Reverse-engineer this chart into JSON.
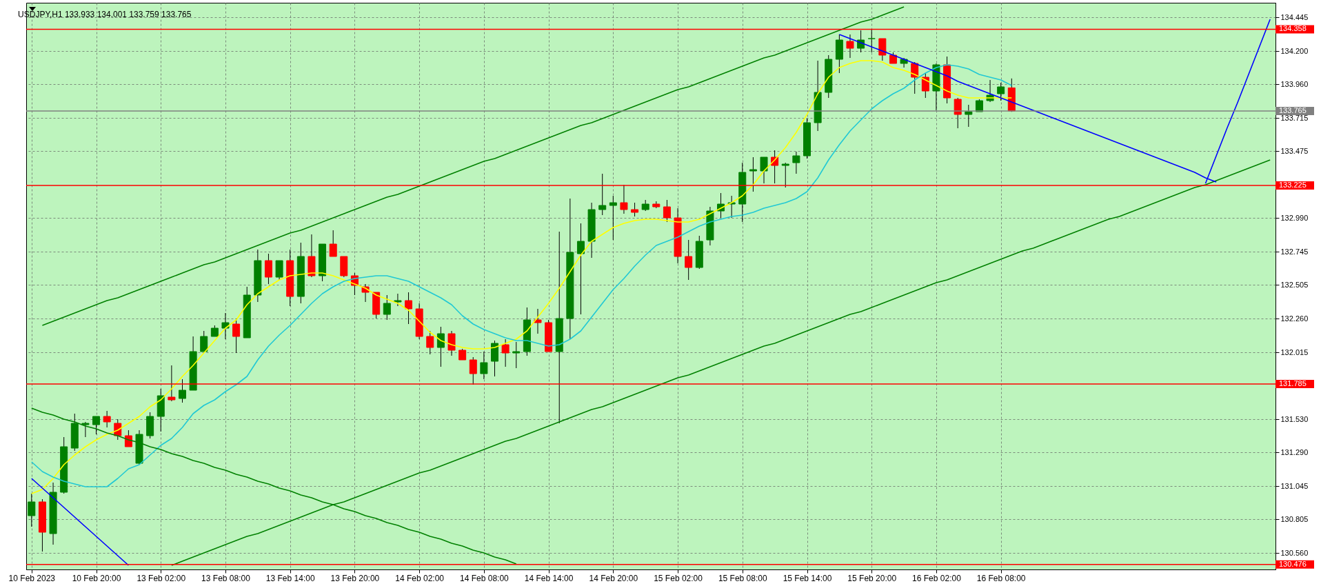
{
  "chart_data": {
    "type": "candlestick",
    "title": "USDJPY,H1  133.933 134.001 133.759 133.765",
    "categories": [
      "10 Feb 2023",
      null,
      null,
      null,
      null,
      null,
      "10 Feb 20:00",
      null,
      null,
      null,
      null,
      null,
      "13 Feb 02:00",
      null,
      null,
      null,
      null,
      null,
      "13 Feb 08:00",
      null,
      null,
      null,
      null,
      null,
      "13 Feb 14:00",
      null,
      null,
      null,
      null,
      null,
      "13 Feb 20:00",
      null,
      null,
      null,
      null,
      null,
      "14 Feb 02:00",
      null,
      null,
      null,
      null,
      null,
      "14 Feb 08:00",
      null,
      null,
      null,
      null,
      null,
      "14 Feb 14:00",
      null,
      null,
      null,
      null,
      null,
      "14 Feb 20:00",
      null,
      null,
      null,
      null,
      null,
      "15 Feb 02:00",
      null,
      null,
      null,
      null,
      null,
      "15 Feb 08:00",
      null,
      null,
      null,
      null,
      null,
      "15 Feb 14:00",
      null,
      null,
      null,
      null,
      null,
      "15 Feb 20:00",
      null,
      null,
      null,
      null,
      null,
      "16 Feb 02:00",
      null,
      null,
      null,
      null,
      null,
      "16 Feb 08:00",
      null,
      null,
      null,
      null,
      null,
      null,
      null,
      null,
      null,
      null,
      null,
      null,
      null,
      null,
      null,
      null,
      null,
      null,
      null,
      null,
      null,
      null,
      null,
      null,
      null
    ],
    "colors": [
      "#008000",
      "#ff0000",
      "#008000",
      "#008000",
      "#008000",
      "#008000",
      "#008000",
      "#ff0000",
      "#ff0000",
      "#ff0000",
      "#008000",
      "#008000",
      "#008000",
      "#ff0000",
      "#008000",
      "#008000",
      "#008000",
      "#008000",
      "#008000",
      "#ff0000",
      "#008000",
      "#008000",
      "#ff0000",
      "#008000",
      "#ff0000",
      "#008000",
      "#ff0000",
      "#008000",
      "#ff0000",
      "#ff0000",
      "#ff0000",
      "#ff0000",
      "#ff0000",
      "#008000",
      "#008000",
      "#ff0000",
      "#ff0000",
      "#ff0000",
      "#008000",
      "#ff0000",
      "#ff0000",
      "#ff0000",
      "#008000",
      "#008000",
      "#ff0000",
      "#008000",
      "#008000",
      "#ff0000",
      "#ff0000",
      "#008000",
      "#008000",
      "#008000",
      "#008000",
      "#008000",
      "#008000",
      "#ff0000",
      "#ff0000",
      "#008000",
      "#ff0000",
      "#ff0000",
      "#ff0000",
      "#ff0000",
      "#008000",
      "#008000",
      "#008000",
      "#008000",
      "#008000",
      "#008000",
      "#008000",
      "#ff0000",
      "#008000",
      "#008000",
      "#008000",
      "#008000",
      "#008000",
      "#008000",
      "#ff0000",
      "#008000",
      "#008000",
      "#ff0000",
      "#ff0000",
      "#008000",
      "#ff0000",
      "#ff0000",
      "#008000",
      "#ff0000",
      "#ff0000",
      "#008000",
      "#008000",
      "#008000",
      "#008000",
      "#ff0000",
      null,
      null,
      null,
      null,
      null,
      null,
      null,
      null,
      null,
      null,
      null,
      null,
      null,
      null,
      null,
      null,
      null,
      null,
      null,
      null,
      null,
      null,
      null,
      null
    ],
    "ohlc": [
      [
        130.83,
        130.99,
        130.75,
        130.93
      ],
      [
        130.93,
        130.95,
        130.57,
        130.71
      ],
      [
        130.7,
        131.07,
        130.62,
        131.0
      ],
      [
        131.0,
        131.4,
        130.99,
        131.33
      ],
      [
        131.32,
        131.57,
        131.3,
        131.5
      ],
      [
        131.49,
        131.51,
        131.4,
        131.5
      ],
      [
        131.49,
        131.55,
        131.42,
        131.55
      ],
      [
        131.55,
        131.59,
        131.47,
        131.51
      ],
      [
        131.5,
        131.53,
        131.38,
        131.41
      ],
      [
        131.41,
        131.45,
        131.33,
        131.33
      ],
      [
        131.21,
        131.45,
        131.2,
        131.42
      ],
      [
        131.41,
        131.58,
        131.39,
        131.55
      ],
      [
        131.55,
        131.75,
        131.44,
        131.7
      ],
      [
        131.69,
        131.92,
        131.66,
        131.67
      ],
      [
        131.68,
        131.82,
        131.65,
        131.74
      ],
      [
        131.74,
        132.13,
        131.74,
        132.02
      ],
      [
        132.02,
        132.17,
        132.02,
        132.13
      ],
      [
        132.13,
        132.21,
        132.13,
        132.19
      ],
      [
        132.19,
        132.3,
        132.11,
        132.23
      ],
      [
        132.22,
        132.26,
        132.01,
        132.13
      ],
      [
        132.12,
        132.49,
        132.12,
        132.43
      ],
      [
        132.43,
        132.76,
        132.38,
        132.68
      ],
      [
        132.68,
        132.73,
        132.51,
        132.56
      ],
      [
        132.56,
        132.68,
        132.54,
        132.68
      ],
      [
        132.68,
        132.76,
        132.35,
        132.42
      ],
      [
        132.42,
        132.81,
        132.37,
        132.71
      ],
      [
        132.71,
        132.87,
        132.56,
        132.57
      ],
      [
        132.57,
        132.8,
        132.53,
        132.8
      ],
      [
        132.8,
        132.9,
        132.71,
        132.71
      ],
      [
        132.71,
        132.71,
        132.56,
        132.57
      ],
      [
        132.57,
        132.59,
        132.43,
        132.5
      ],
      [
        132.49,
        132.51,
        132.38,
        132.45
      ],
      [
        132.45,
        132.45,
        132.26,
        132.29
      ],
      [
        132.29,
        132.43,
        132.25,
        132.37
      ],
      [
        132.38,
        132.44,
        132.35,
        132.39
      ],
      [
        132.39,
        132.45,
        132.22,
        132.33
      ],
      [
        132.33,
        132.37,
        132.11,
        132.13
      ],
      [
        132.13,
        132.17,
        132.0,
        132.05
      ],
      [
        132.05,
        132.2,
        131.91,
        132.15
      ],
      [
        132.15,
        132.17,
        131.99,
        132.03
      ],
      [
        132.03,
        132.04,
        131.96,
        131.96
      ],
      [
        131.96,
        131.98,
        131.78,
        131.86
      ],
      [
        131.86,
        132.02,
        131.82,
        131.94
      ],
      [
        131.95,
        132.1,
        131.84,
        132.08
      ],
      [
        132.07,
        132.11,
        131.91,
        132.01
      ],
      [
        132.01,
        132.09,
        131.9,
        132.02
      ],
      [
        132.02,
        132.34,
        131.99,
        132.25
      ],
      [
        132.25,
        132.33,
        132.15,
        132.23
      ],
      [
        132.23,
        132.25,
        132.02,
        132.02
      ],
      [
        132.02,
        132.89,
        131.5,
        132.26
      ],
      [
        132.26,
        133.13,
        132.11,
        132.74
      ],
      [
        132.73,
        132.95,
        132.29,
        132.82
      ],
      [
        132.82,
        133.1,
        132.7,
        133.05
      ],
      [
        133.05,
        133.31,
        133.01,
        133.08
      ],
      [
        133.08,
        133.15,
        132.83,
        133.1
      ],
      [
        133.1,
        133.23,
        133.02,
        133.05
      ],
      [
        133.05,
        133.1,
        133.0,
        133.03
      ],
      [
        133.05,
        133.12,
        133.04,
        133.09
      ],
      [
        133.09,
        133.11,
        133.06,
        133.07
      ],
      [
        133.07,
        133.12,
        132.96,
        132.99
      ],
      [
        132.99,
        133.06,
        132.66,
        132.71
      ],
      [
        132.71,
        132.83,
        132.54,
        132.63
      ],
      [
        132.63,
        132.86,
        132.62,
        132.82
      ],
      [
        132.83,
        133.07,
        132.79,
        133.04
      ],
      [
        133.04,
        133.17,
        132.99,
        133.09
      ],
      [
        133.09,
        133.15,
        132.99,
        133.1
      ],
      [
        133.09,
        133.39,
        132.96,
        133.32
      ],
      [
        133.33,
        133.43,
        133.18,
        133.34
      ],
      [
        133.33,
        133.43,
        133.24,
        133.43
      ],
      [
        133.43,
        133.48,
        133.24,
        133.37
      ],
      [
        133.37,
        133.39,
        133.21,
        133.38
      ],
      [
        133.39,
        133.47,
        133.31,
        133.44
      ],
      [
        133.44,
        133.71,
        133.42,
        133.68
      ],
      [
        133.68,
        134.13,
        133.62,
        133.9
      ],
      [
        133.9,
        134.17,
        133.86,
        134.14
      ],
      [
        134.14,
        134.32,
        134.04,
        134.28
      ],
      [
        134.27,
        134.32,
        134.15,
        134.22
      ],
      [
        134.22,
        134.35,
        134.19,
        134.28
      ],
      [
        134.29,
        134.36,
        134.19,
        134.29
      ],
      [
        134.29,
        134.29,
        134.13,
        134.17
      ],
      [
        134.17,
        134.19,
        134.11,
        134.11
      ],
      [
        134.11,
        134.15,
        134.08,
        134.14
      ],
      [
        134.11,
        134.12,
        133.89,
        134.01
      ],
      [
        134.01,
        134.04,
        133.86,
        133.91
      ],
      [
        133.91,
        134.11,
        133.77,
        134.1
      ],
      [
        134.1,
        134.16,
        133.82,
        133.86
      ],
      [
        133.85,
        133.86,
        133.64,
        133.74
      ],
      [
        133.74,
        133.81,
        133.65,
        133.76
      ],
      [
        133.76,
        133.85,
        133.76,
        133.84
      ],
      [
        133.84,
        133.99,
        133.83,
        133.88
      ],
      [
        133.89,
        133.97,
        133.84,
        133.94
      ],
      [
        133.933,
        134.001,
        133.759,
        133.765
      ],
      null,
      null,
      null,
      null,
      null,
      null,
      null,
      null,
      null,
      null,
      null,
      null,
      null,
      null,
      null,
      null,
      null,
      null,
      null,
      null,
      null,
      null,
      null,
      null
    ],
    "series": [
      {
        "type": "line",
        "color": "#ffff00",
        "values": [
          130.99,
          131.02,
          131.1,
          131.2,
          131.27,
          131.33,
          131.38,
          131.42,
          131.45,
          131.5,
          131.55,
          131.62,
          131.67,
          131.75,
          131.84,
          131.92,
          132.01,
          132.1,
          132.19,
          132.25,
          132.36,
          132.44,
          132.49,
          132.54,
          132.57,
          132.58,
          132.59,
          132.59,
          132.57,
          132.54,
          132.51,
          132.48,
          132.43,
          132.4,
          132.37,
          132.32,
          132.24,
          132.16,
          132.1,
          132.07,
          132.05,
          132.04,
          132.04,
          132.05,
          132.08,
          132.11,
          132.17,
          132.27,
          132.37,
          132.48,
          132.6,
          132.72,
          132.82,
          132.87,
          132.92,
          132.95,
          132.97,
          132.98,
          132.98,
          132.97,
          132.96,
          132.96,
          132.98,
          133.02,
          133.06,
          133.1,
          133.15,
          133.23,
          133.33,
          133.41,
          133.5,
          133.61,
          133.74,
          133.89,
          134.01,
          134.08,
          134.11,
          134.13,
          134.13,
          134.12,
          134.08,
          134.06,
          134.03,
          133.99,
          133.95,
          133.91,
          133.88,
          133.86,
          133.86,
          133.86,
          133.86,
          133.86,
          null,
          null,
          null,
          null,
          null,
          null,
          null,
          null,
          null,
          null,
          null,
          null,
          null,
          null,
          null,
          null,
          null,
          null,
          null,
          null,
          null,
          null,
          null,
          null
        ]
      },
      {
        "type": "line",
        "color": "#20c8d4",
        "values": [
          131.22,
          131.15,
          131.11,
          131.08,
          131.06,
          131.04,
          131.04,
          131.04,
          131.1,
          131.17,
          131.2,
          131.27,
          131.34,
          131.39,
          131.47,
          131.57,
          131.63,
          131.67,
          131.73,
          131.78,
          131.84,
          131.96,
          132.06,
          132.14,
          132.21,
          132.29,
          132.37,
          132.44,
          132.49,
          132.53,
          132.55,
          132.56,
          132.57,
          132.57,
          132.55,
          132.53,
          132.49,
          132.45,
          132.41,
          132.36,
          132.28,
          132.22,
          132.18,
          132.15,
          132.12,
          132.1,
          132.1,
          132.08,
          132.06,
          132.07,
          132.11,
          132.17,
          132.27,
          132.37,
          132.47,
          132.55,
          132.64,
          132.72,
          132.79,
          132.82,
          132.85,
          132.89,
          132.93,
          132.96,
          132.98,
          133.0,
          133.01,
          133.03,
          133.06,
          133.08,
          133.1,
          133.13,
          133.18,
          133.28,
          133.41,
          133.52,
          133.62,
          133.7,
          133.78,
          133.84,
          133.89,
          133.93,
          133.99,
          134.04,
          134.08,
          134.1,
          134.09,
          134.07,
          134.03,
          134.01,
          133.99,
          133.95,
          null,
          null,
          null,
          null,
          null,
          null,
          null,
          null,
          null,
          null,
          null,
          null,
          null,
          null,
          null,
          null,
          null,
          null,
          null,
          null,
          null,
          null,
          null,
          null
        ]
      },
      {
        "type": "line",
        "color": "#008000",
        "values": [
          null,
          132.21,
          132.24,
          132.27,
          132.3,
          132.33,
          132.36,
          132.39,
          132.41,
          132.44,
          132.47,
          132.5,
          132.53,
          132.56,
          132.59,
          132.62,
          132.65,
          132.67,
          132.7,
          132.73,
          132.76,
          132.79,
          132.82,
          132.85,
          132.88,
          132.9,
          132.93,
          132.96,
          132.99,
          133.02,
          133.05,
          133.08,
          133.11,
          133.14,
          133.16,
          133.19,
          133.22,
          133.25,
          133.28,
          133.31,
          133.34,
          133.37,
          133.4,
          133.42,
          133.45,
          133.48,
          133.51,
          133.54,
          133.57,
          133.6,
          133.63,
          133.66,
          133.68,
          133.71,
          133.74,
          133.77,
          133.8,
          133.83,
          133.86,
          133.89,
          133.92,
          133.94,
          133.97,
          134.0,
          134.03,
          134.06,
          134.09,
          134.12,
          134.15,
          134.17,
          134.2,
          134.23,
          134.26,
          134.29,
          134.32,
          134.35,
          134.38,
          134.41,
          134.43,
          134.46,
          134.49,
          134.52,
          null,
          null,
          null,
          null,
          null,
          null,
          null,
          null,
          null,
          null,
          null,
          null,
          null,
          null,
          null,
          null,
          null,
          null,
          null,
          null,
          null,
          null,
          null,
          null,
          null,
          null,
          null,
          null,
          null,
          null,
          null,
          null,
          null,
          null
        ]
      },
      {
        "type": "line",
        "color": "#008000",
        "values": [
          null,
          null,
          null,
          null,
          null,
          null,
          null,
          null,
          null,
          null,
          null,
          null,
          null,
          130.47,
          130.5,
          130.53,
          130.56,
          130.59,
          130.62,
          130.65,
          130.68,
          130.7,
          130.73,
          130.76,
          130.79,
          130.82,
          130.85,
          130.88,
          130.91,
          130.93,
          130.96,
          130.99,
          131.02,
          131.05,
          131.08,
          131.11,
          131.14,
          131.16,
          131.19,
          131.22,
          131.25,
          131.28,
          131.31,
          131.34,
          131.37,
          131.39,
          131.42,
          131.45,
          131.48,
          131.51,
          131.54,
          131.57,
          131.6,
          131.62,
          131.65,
          131.68,
          131.71,
          131.74,
          131.77,
          131.8,
          131.83,
          131.85,
          131.88,
          131.91,
          131.94,
          131.97,
          132.0,
          132.03,
          132.06,
          132.08,
          132.11,
          132.14,
          132.17,
          132.2,
          132.23,
          132.26,
          132.29,
          132.31,
          132.34,
          132.37,
          132.4,
          132.43,
          132.46,
          132.49,
          132.52,
          132.54,
          132.57,
          132.6,
          132.63,
          132.66,
          132.69,
          132.72,
          132.75,
          132.77,
          132.8,
          132.83,
          132.86,
          132.89,
          132.92,
          132.95,
          132.98,
          133.0,
          133.03,
          133.06,
          133.09,
          133.12,
          133.15,
          133.18,
          133.21,
          133.23,
          133.26,
          133.29,
          133.32,
          133.35,
          133.38,
          133.41
        ]
      },
      {
        "type": "line",
        "color": "#008000",
        "values": [
          131.61,
          131.58,
          131.56,
          131.53,
          131.51,
          131.48,
          131.46,
          131.43,
          131.41,
          131.38,
          131.36,
          131.33,
          131.31,
          131.28,
          131.26,
          131.23,
          131.21,
          131.18,
          131.16,
          131.13,
          131.11,
          131.08,
          131.06,
          131.03,
          131.01,
          130.98,
          130.96,
          130.93,
          130.91,
          130.88,
          130.86,
          130.83,
          130.81,
          130.78,
          130.76,
          130.73,
          130.71,
          130.68,
          130.66,
          130.63,
          130.61,
          130.58,
          130.56,
          130.53,
          130.51,
          130.48,
          null,
          null,
          null,
          null,
          null,
          null,
          null,
          null,
          null,
          null,
          null,
          null,
          null,
          null,
          null,
          null,
          null,
          null,
          null,
          null,
          null,
          null,
          null,
          null,
          null,
          null,
          null,
          null,
          null,
          null,
          null,
          null,
          null,
          null,
          null,
          null,
          null,
          null,
          null,
          null,
          null,
          null,
          null,
          null,
          null,
          null,
          null,
          null,
          null,
          null,
          null,
          null,
          null,
          null,
          null,
          null,
          null,
          null,
          null,
          null,
          null,
          null,
          null,
          null,
          null,
          null,
          null,
          null,
          null,
          null
        ]
      },
      {
        "type": "line",
        "color": "#0000ff",
        "values": [
          131.1,
          131.03,
          130.96,
          130.89,
          130.82,
          130.75,
          130.68,
          130.61,
          130.54,
          130.47,
          null,
          null,
          null,
          null,
          null,
          null,
          null,
          null,
          null,
          null,
          null,
          null,
          null,
          null,
          null,
          null,
          null,
          null,
          null,
          null,
          null,
          null,
          null,
          null,
          null,
          null,
          null,
          null,
          null,
          null,
          null,
          null,
          null,
          null,
          null,
          null,
          null,
          null,
          null,
          null,
          null,
          null,
          null,
          null,
          null,
          null,
          null,
          null,
          null,
          null,
          null,
          null,
          null,
          null,
          null,
          null,
          null,
          null,
          null,
          null,
          null,
          null,
          null,
          null,
          null,
          null,
          null,
          null,
          null,
          null,
          null,
          null,
          null,
          null,
          null,
          null,
          null,
          null,
          null,
          null,
          null,
          null,
          null,
          null,
          null,
          null,
          null,
          null,
          null,
          null,
          null,
          null,
          null,
          null,
          null,
          null,
          null,
          null,
          null,
          null,
          null,
          null,
          null,
          null,
          null,
          null
        ]
      },
      {
        "type": "line",
        "color": "#0000ff",
        "values": [
          null,
          null,
          null,
          null,
          null,
          null,
          null,
          null,
          null,
          null,
          null,
          null,
          null,
          null,
          null,
          null,
          null,
          null,
          null,
          null,
          null,
          null,
          null,
          null,
          null,
          null,
          null,
          null,
          null,
          null,
          null,
          null,
          null,
          null,
          null,
          null,
          null,
          null,
          null,
          null,
          null,
          null,
          null,
          null,
          null,
          null,
          null,
          null,
          null,
          null,
          null,
          null,
          null,
          null,
          null,
          null,
          null,
          null,
          null,
          null,
          null,
          null,
          null,
          null,
          null,
          null,
          null,
          null,
          null,
          null,
          null,
          null,
          null,
          null,
          null,
          134.32,
          134.29,
          134.26,
          134.23,
          134.2,
          134.17,
          134.14,
          134.11,
          134.08,
          134.05,
          134.02,
          133.98,
          133.95,
          133.92,
          133.89,
          133.86,
          133.83,
          133.8,
          133.77,
          133.74,
          133.71,
          133.68,
          133.65,
          133.62,
          133.59,
          133.56,
          133.53,
          133.5,
          133.47,
          133.44,
          133.41,
          133.38,
          133.35,
          133.32,
          133.28,
          133.25,
          null,
          null,
          null,
          null,
          null
        ]
      },
      {
        "type": "line",
        "color": "#0000ff",
        "values": [
          null,
          null,
          null,
          null,
          null,
          null,
          null,
          null,
          null,
          null,
          null,
          null,
          null,
          null,
          null,
          null,
          null,
          null,
          null,
          null,
          null,
          null,
          null,
          null,
          null,
          null,
          null,
          null,
          null,
          null,
          null,
          null,
          null,
          null,
          null,
          null,
          null,
          null,
          null,
          null,
          null,
          null,
          null,
          null,
          null,
          null,
          null,
          null,
          null,
          null,
          null,
          null,
          null,
          null,
          null,
          null,
          null,
          null,
          null,
          null,
          null,
          null,
          null,
          null,
          null,
          null,
          null,
          null,
          null,
          null,
          null,
          null,
          null,
          null,
          null,
          null,
          null,
          null,
          null,
          null,
          null,
          null,
          null,
          null,
          null,
          null,
          null,
          null,
          null,
          null,
          null,
          null,
          null,
          null,
          null,
          null,
          null,
          null,
          null,
          null,
          null,
          null,
          null,
          null,
          null,
          null,
          null,
          null,
          null,
          133.24,
          133.44,
          133.64,
          133.83,
          134.03,
          134.23,
          134.43
        ]
      }
    ],
    "ref_lines": [
      {
        "axis": "y",
        "value": 134.358,
        "label": "134.358",
        "color": "#ff0000"
      },
      {
        "axis": "y",
        "value": 133.765,
        "label": "133.765",
        "color": "#808080"
      },
      {
        "axis": "y",
        "value": 133.225,
        "label": "133.225",
        "color": "#ff0000"
      },
      {
        "axis": "y",
        "value": 131.785,
        "label": "131.785",
        "color": "#ff0000"
      },
      {
        "axis": "y",
        "value": 130.476,
        "label": "130.476",
        "color": "#ff0000"
      }
    ],
    "ylim": [
      130.44,
      134.55
    ],
    "yticks": [
      134.445,
      {
        "value": 134.2,
        "label": "134.200"
      },
      {
        "value": 133.96,
        "label": "133.960"
      },
      133.715,
      133.475,
      {
        "value": 132.99,
        "label": "132.990"
      },
      132.745,
      132.505,
      {
        "value": 132.26,
        "label": "132.260"
      },
      132.015,
      {
        "value": 131.53,
        "label": "131.530"
      },
      {
        "value": 131.29,
        "label": "131.290"
      },
      131.045,
      130.805,
      {
        "value": 130.56,
        "label": "130.560"
      }
    ],
    "grid": true
  }
}
